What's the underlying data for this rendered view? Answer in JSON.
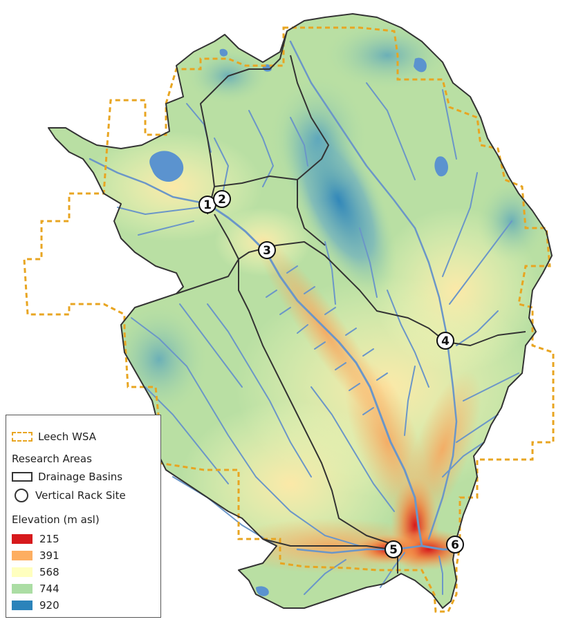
{
  "map": {
    "colors": {
      "wsa_boundary": "#e8a521",
      "basin_boundary": "#333333",
      "river": "#6b96c8",
      "lake": "#5b93cf"
    },
    "sites": [
      "1",
      "2",
      "3",
      "4",
      "5",
      "6"
    ]
  },
  "legend": {
    "wsa_label": "Leech WSA",
    "research_heading": "Research Areas",
    "basins_label": "Drainage Basins",
    "rack_label": "Vertical Rack Site",
    "elevation_heading": "Elevation (m asl)",
    "elevation_classes": [
      {
        "label": "215",
        "color": "#d7191c"
      },
      {
        "label": "391",
        "color": "#fdae61"
      },
      {
        "label": "568",
        "color": "#ffffbf"
      },
      {
        "label": "744",
        "color": "#abdda4"
      },
      {
        "label": "920",
        "color": "#2b83ba"
      }
    ]
  }
}
